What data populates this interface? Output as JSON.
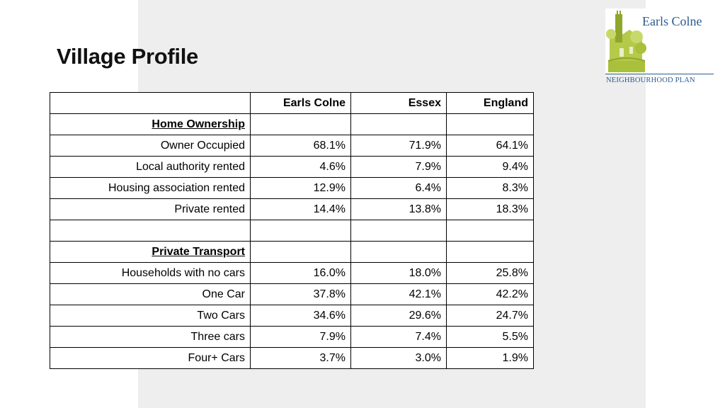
{
  "page": {
    "title": "Village Profile"
  },
  "logo": {
    "name": "Earls Colne",
    "subtitle": "NEIGHBOURHOOD PLAN",
    "colors": {
      "green": "#a8c03a",
      "blue": "#2a5b8f"
    }
  },
  "table": {
    "columns": [
      "",
      "Earls Colne",
      "Essex",
      "England"
    ],
    "rows": [
      {
        "label": "Home Ownership",
        "section": true,
        "values": [
          "",
          "",
          ""
        ]
      },
      {
        "label": "Owner Occupied",
        "values": [
          "68.1%",
          "71.9%",
          "64.1%"
        ]
      },
      {
        "label": "Local authority rented",
        "values": [
          "4.6%",
          "7.9%",
          "9.4%"
        ]
      },
      {
        "label": "Housing association rented",
        "values": [
          "12.9%",
          "6.4%",
          "8.3%"
        ]
      },
      {
        "label": "Private rented",
        "values": [
          "14.4%",
          "13.8%",
          "18.3%"
        ]
      },
      {
        "label": "",
        "values": [
          "",
          "",
          ""
        ]
      },
      {
        "label": "Private Transport",
        "section": true,
        "values": [
          "",
          "",
          ""
        ]
      },
      {
        "label": "Households with no cars",
        "values": [
          "16.0%",
          "18.0%",
          "25.8%"
        ]
      },
      {
        "label": "One Car",
        "values": [
          "37.8%",
          "42.1%",
          "42.2%"
        ]
      },
      {
        "label": "Two Cars",
        "values": [
          "34.6%",
          "29.6%",
          "24.7%"
        ]
      },
      {
        "label": "Three cars",
        "values": [
          "7.9%",
          "7.4%",
          "5.5%"
        ]
      },
      {
        "label": "Four+ Cars",
        "values": [
          "3.7%",
          "3.0%",
          "1.9%"
        ]
      }
    ]
  }
}
